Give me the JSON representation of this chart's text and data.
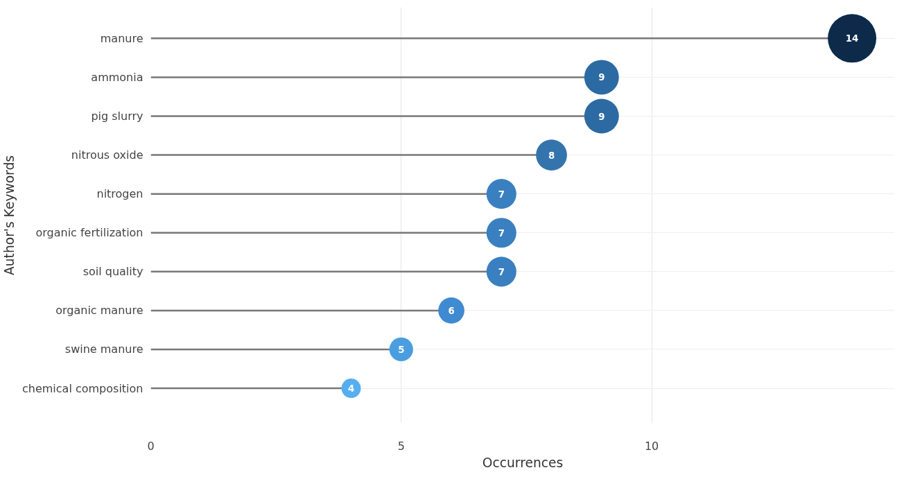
{
  "chart_data": {
    "type": "lollipop",
    "orientation": "horizontal",
    "xlabel": "Occurrences",
    "ylabel": "Author's Keywords",
    "categories": [
      "manure",
      "ammonia",
      "pig slurry",
      "nitrous oxide",
      "nitrogen",
      "organic fertilization",
      "soil quality",
      "organic manure",
      "swine manure",
      "chemical composition"
    ],
    "values": [
      14,
      9,
      9,
      8,
      7,
      7,
      7,
      6,
      5,
      4
    ],
    "sizes": [
      1,
      0.51,
      0.51,
      0.41,
      0.38,
      0.38,
      0.38,
      0.29,
      0.24,
      0.16
    ],
    "colors": [
      "#0d2a4a",
      "#2c6aa3",
      "#2c6aa3",
      "#3474ad",
      "#3a80c0",
      "#3a80c0",
      "#3a80c0",
      "#3f8ad0",
      "#4a9ee0",
      "#56aef0"
    ],
    "xlim": [
      0,
      14.85
    ],
    "xticks": [
      0,
      5,
      10
    ],
    "grid": true,
    "data_labels": true
  }
}
